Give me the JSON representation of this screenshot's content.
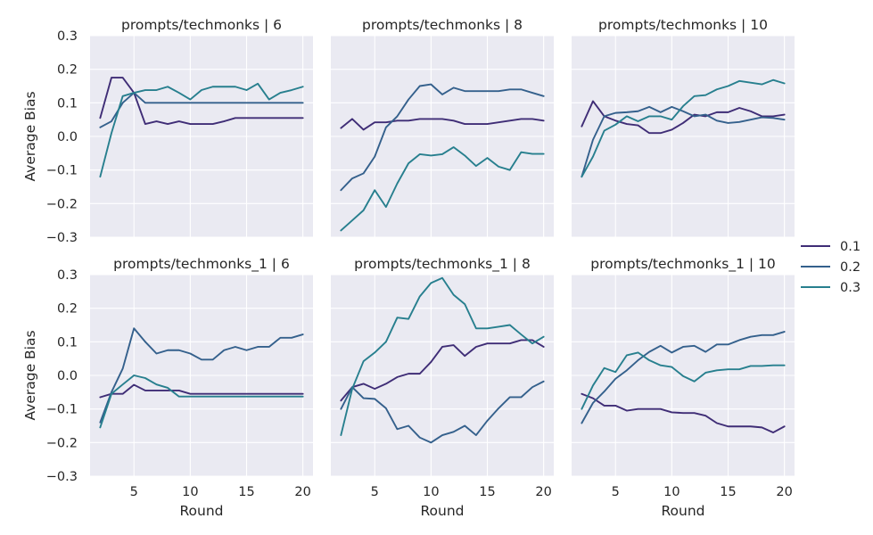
{
  "chart_data": {
    "type": "line",
    "facet_layout": {
      "rows": 2,
      "cols": 3,
      "sharex": true,
      "sharey": true
    },
    "ylabel": "Average Bias",
    "xlabel": "Round",
    "ylim": [
      -0.3,
      0.3
    ],
    "yticks": [
      -0.3,
      -0.2,
      -0.1,
      0.0,
      0.1,
      0.2,
      0.3
    ],
    "ytick_labels": [
      "−0.3",
      "−0.2",
      "−0.1",
      "0.0",
      "0.1",
      "0.2",
      "0.3"
    ],
    "xlim": [
      1.1,
      20.9
    ],
    "xticks": [
      5,
      10,
      15,
      20
    ],
    "xtick_labels": [
      "5",
      "10",
      "15",
      "20"
    ],
    "grid": true,
    "legend": {
      "placement": "right",
      "entries": [
        {
          "label": "0.1",
          "color": "#3f2d76"
        },
        {
          "label": "0.2",
          "color": "#34608c"
        },
        {
          "label": "0.3",
          "color": "#277f8e"
        }
      ]
    },
    "x": [
      2,
      3,
      4,
      5,
      6,
      7,
      8,
      9,
      10,
      11,
      12,
      13,
      14,
      15,
      16,
      17,
      18,
      19,
      20
    ],
    "panels": [
      {
        "title": "prompts/techmonks | 6",
        "series": [
          {
            "name": "0.1",
            "values": [
              0.055,
              0.175,
              0.175,
              0.13,
              0.037,
              0.045,
              0.037,
              0.045,
              0.037,
              0.037,
              0.037,
              0.045,
              0.055,
              0.055,
              0.055,
              0.055,
              0.055,
              0.055,
              0.055
            ]
          },
          {
            "name": "0.2",
            "values": [
              0.027,
              0.045,
              0.1,
              0.13,
              0.1,
              0.1,
              0.1,
              0.1,
              0.1,
              0.1,
              0.1,
              0.1,
              0.1,
              0.1,
              0.1,
              0.1,
              0.1,
              0.1,
              0.1
            ]
          },
          {
            "name": "0.3",
            "values": [
              -0.12,
              0.01,
              0.12,
              0.13,
              0.138,
              0.138,
              0.148,
              0.13,
              0.11,
              0.138,
              0.148,
              0.148,
              0.148,
              0.138,
              0.157,
              0.11,
              0.13,
              0.138,
              0.148
            ]
          }
        ]
      },
      {
        "title": "prompts/techmonks | 8",
        "series": [
          {
            "name": "0.1",
            "values": [
              0.025,
              0.052,
              0.02,
              0.042,
              0.042,
              0.047,
              0.047,
              0.052,
              0.052,
              0.052,
              0.047,
              0.037,
              0.037,
              0.037,
              0.042,
              0.047,
              0.052,
              0.052,
              0.047
            ]
          },
          {
            "name": "0.2",
            "values": [
              -0.16,
              -0.125,
              -0.11,
              -0.06,
              0.027,
              0.06,
              0.11,
              0.15,
              0.155,
              0.125,
              0.145,
              0.135,
              0.135,
              0.135,
              0.135,
              0.14,
              0.14,
              0.13,
              0.12
            ]
          },
          {
            "name": "0.3",
            "values": [
              -0.28,
              -0.25,
              -0.22,
              -0.16,
              -0.21,
              -0.14,
              -0.08,
              -0.053,
              -0.057,
              -0.053,
              -0.032,
              -0.057,
              -0.088,
              -0.064,
              -0.09,
              -0.1,
              -0.047,
              -0.052,
              -0.052
            ]
          }
        ]
      },
      {
        "title": "prompts/techmonks | 10",
        "series": [
          {
            "name": "0.1",
            "values": [
              0.03,
              0.105,
              0.06,
              0.047,
              0.037,
              0.033,
              0.01,
              0.01,
              0.02,
              0.04,
              0.065,
              0.06,
              0.072,
              0.072,
              0.085,
              0.075,
              0.06,
              0.06,
              0.065
            ]
          },
          {
            "name": "0.2",
            "values": [
              -0.12,
              -0.01,
              0.06,
              0.07,
              0.072,
              0.075,
              0.088,
              0.072,
              0.088,
              0.075,
              0.06,
              0.065,
              0.047,
              0.04,
              0.043,
              0.05,
              0.057,
              0.055,
              0.05
            ]
          },
          {
            "name": "0.3",
            "values": [
              -0.12,
              -0.06,
              0.017,
              0.035,
              0.06,
              0.045,
              0.06,
              0.06,
              0.05,
              0.09,
              0.12,
              0.123,
              0.14,
              0.15,
              0.165,
              0.16,
              0.155,
              0.168,
              0.158
            ]
          }
        ]
      },
      {
        "title": "prompts/techmonks_1 | 6",
        "series": [
          {
            "name": "0.1",
            "values": [
              -0.065,
              -0.055,
              -0.055,
              -0.028,
              -0.045,
              -0.045,
              -0.045,
              -0.045,
              -0.055,
              -0.055,
              -0.055,
              -0.055,
              -0.055,
              -0.055,
              -0.055,
              -0.055,
              -0.055,
              -0.055,
              -0.055
            ]
          },
          {
            "name": "0.2",
            "values": [
              -0.14,
              -0.05,
              0.02,
              0.14,
              0.1,
              0.065,
              0.075,
              0.075,
              0.065,
              0.047,
              0.047,
              0.075,
              0.085,
              0.075,
              0.085,
              0.085,
              0.112,
              0.112,
              0.122
            ]
          },
          {
            "name": "0.3",
            "values": [
              -0.155,
              -0.055,
              -0.027,
              0.0,
              -0.008,
              -0.027,
              -0.037,
              -0.063,
              -0.063,
              -0.063,
              -0.063,
              -0.063,
              -0.063,
              -0.063,
              -0.063,
              -0.063,
              -0.063,
              -0.063,
              -0.063
            ]
          }
        ]
      },
      {
        "title": "prompts/techmonks_1 | 8",
        "series": [
          {
            "name": "0.1",
            "values": [
              -0.075,
              -0.035,
              -0.025,
              -0.04,
              -0.025,
              -0.005,
              0.005,
              0.005,
              0.04,
              0.085,
              0.09,
              0.058,
              0.085,
              0.095,
              0.095,
              0.095,
              0.105,
              0.105,
              0.085
            ]
          },
          {
            "name": "0.2",
            "values": [
              -0.1,
              -0.035,
              -0.068,
              -0.07,
              -0.098,
              -0.16,
              -0.15,
              -0.185,
              -0.2,
              -0.178,
              -0.168,
              -0.15,
              -0.178,
              -0.135,
              -0.098,
              -0.065,
              -0.065,
              -0.035,
              -0.018
            ]
          },
          {
            "name": "0.3",
            "values": [
              -0.178,
              -0.04,
              0.042,
              0.068,
              0.1,
              0.172,
              0.168,
              0.235,
              0.275,
              0.29,
              0.24,
              0.212,
              0.14,
              0.14,
              0.145,
              0.15,
              0.122,
              0.095,
              0.115
            ]
          }
        ]
      },
      {
        "title": "prompts/techmonks_1 | 10",
        "series": [
          {
            "name": "0.1",
            "values": [
              -0.055,
              -0.068,
              -0.09,
              -0.09,
              -0.105,
              -0.1,
              -0.1,
              -0.1,
              -0.11,
              -0.112,
              -0.112,
              -0.12,
              -0.142,
              -0.152,
              -0.152,
              -0.152,
              -0.155,
              -0.17,
              -0.152
            ]
          },
          {
            "name": "0.2",
            "values": [
              -0.142,
              -0.082,
              -0.048,
              -0.01,
              0.015,
              0.045,
              0.07,
              0.088,
              0.068,
              0.085,
              0.088,
              0.07,
              0.092,
              0.092,
              0.105,
              0.115,
              0.12,
              0.12,
              0.13
            ]
          },
          {
            "name": "0.3",
            "values": [
              -0.1,
              -0.03,
              0.022,
              0.01,
              0.06,
              0.068,
              0.045,
              0.03,
              0.025,
              -0.002,
              -0.018,
              0.008,
              0.015,
              0.018,
              0.018,
              0.028,
              0.028,
              0.03,
              0.03
            ]
          }
        ]
      }
    ]
  }
}
